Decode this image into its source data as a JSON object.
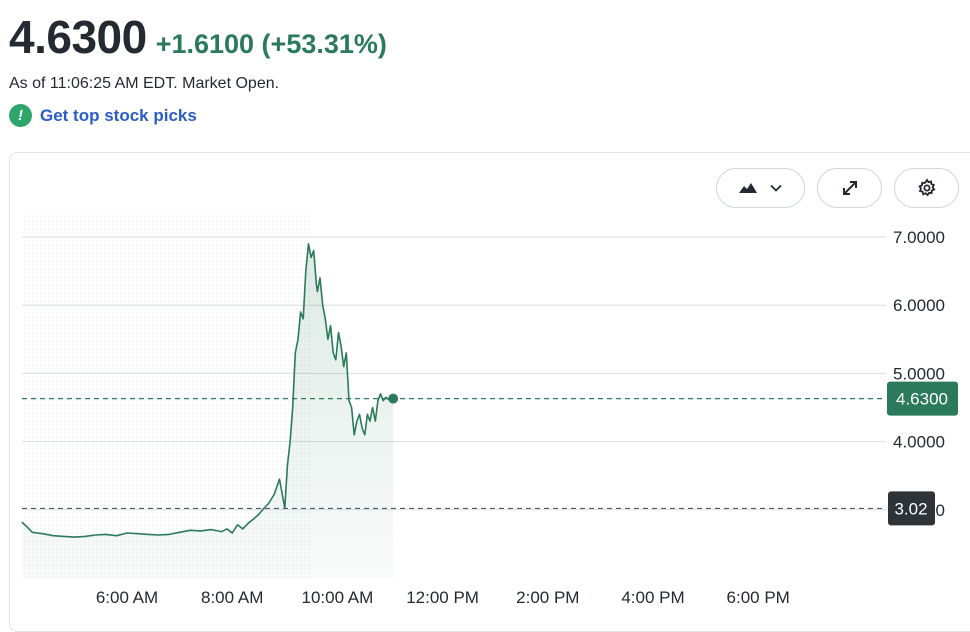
{
  "quote": {
    "price": "4.6300",
    "change": "+1.6100 (+53.31%)",
    "as_of": "As of 11:06:25 AM EDT. Market Open.",
    "picks_label": "Get top stock picks",
    "picks_icon": "exclamation-icon"
  },
  "toolbar": {
    "chart_type_icon": "mountain-chart-icon",
    "dropdown_icon": "chevron-down-icon",
    "expand_icon": "expand-icon",
    "settings_icon": "gear-icon"
  },
  "colors": {
    "positive": "#2b7a5b",
    "line": "#2b7a5b",
    "grid": "#d9dde2",
    "prev_close_bg": "#2e3338",
    "link": "#2c5cc5"
  },
  "chart_data": {
    "type": "area",
    "x_unit": "time of day",
    "xticks": [
      {
        "t": 6,
        "label": "6:00 AM"
      },
      {
        "t": 8,
        "label": "8:00 AM"
      },
      {
        "t": 10,
        "label": "10:00 AM"
      },
      {
        "t": 12,
        "label": "12:00 PM"
      },
      {
        "t": 14,
        "label": "2:00 PM"
      },
      {
        "t": 16,
        "label": "4:00 PM"
      },
      {
        "t": 18,
        "label": "6:00 PM"
      }
    ],
    "yticks": [
      {
        "v": 7,
        "label": "7.0000"
      },
      {
        "v": 6,
        "label": "6.0000"
      },
      {
        "v": 5,
        "label": "5.0000"
      },
      {
        "v": 4,
        "label": "4.0000"
      },
      {
        "v": 3,
        "label": "3.0000"
      }
    ],
    "ylim": [
      2.0,
      7.5
    ],
    "xlim": [
      4.0,
      20.0
    ],
    "grid": true,
    "last_price": {
      "value": 4.63,
      "label": "4.6300"
    },
    "previous_close": {
      "value": 3.02,
      "label": "3.02"
    },
    "premarket_end_time": 9.5,
    "series": [
      {
        "x": [
          4.0,
          4.1,
          4.2,
          4.4,
          4.6,
          4.8,
          5.0,
          5.2,
          5.4,
          5.6,
          5.8,
          6.0,
          6.2,
          6.4,
          6.6,
          6.8,
          7.0,
          7.2,
          7.4,
          7.6,
          7.8,
          7.9,
          8.0,
          8.1,
          8.2,
          8.3,
          8.4,
          8.5,
          8.6,
          8.7,
          8.8,
          8.9,
          9.0,
          9.05,
          9.1,
          9.15,
          9.2,
          9.25,
          9.3,
          9.35,
          9.4,
          9.45,
          9.5,
          9.55,
          9.6,
          9.62,
          9.67,
          9.72,
          9.77,
          9.82,
          9.87,
          9.92,
          9.97,
          10.02,
          10.07,
          10.12,
          10.17,
          10.22,
          10.27,
          10.32,
          10.37,
          10.42,
          10.47,
          10.52,
          10.57,
          10.62,
          10.67,
          10.72,
          10.77,
          10.82,
          10.87,
          10.92,
          10.97,
          11.02,
          11.06
        ],
        "y": [
          2.82,
          2.75,
          2.67,
          2.65,
          2.62,
          2.61,
          2.6,
          2.61,
          2.63,
          2.64,
          2.62,
          2.66,
          2.65,
          2.64,
          2.63,
          2.64,
          2.67,
          2.7,
          2.69,
          2.71,
          2.68,
          2.72,
          2.66,
          2.78,
          2.72,
          2.8,
          2.86,
          2.93,
          3.02,
          3.1,
          3.23,
          3.45,
          3.02,
          3.65,
          4.0,
          4.5,
          5.3,
          5.5,
          5.9,
          5.8,
          6.5,
          6.9,
          6.7,
          6.8,
          6.3,
          6.2,
          6.4,
          6.0,
          5.8,
          5.5,
          5.7,
          5.3,
          5.2,
          5.6,
          5.4,
          5.1,
          5.3,
          4.6,
          4.5,
          4.1,
          4.3,
          4.4,
          4.2,
          4.1,
          4.4,
          4.3,
          4.5,
          4.3,
          4.6,
          4.7,
          4.6,
          4.65,
          4.62,
          4.64,
          4.63
        ]
      }
    ]
  }
}
